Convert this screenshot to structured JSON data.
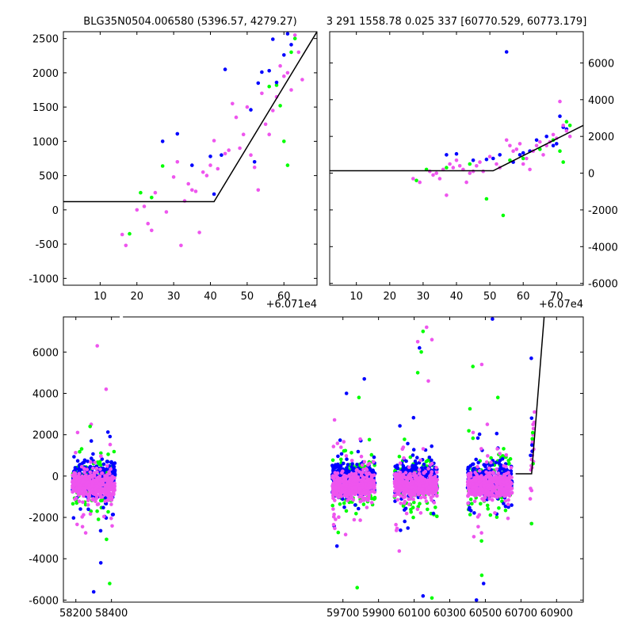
{
  "colors": {
    "blue": "#0000ff",
    "green": "#00ff00",
    "pink": "#ee55ee",
    "model": "#000000",
    "background": "#ffffff"
  },
  "chart_data": [
    {
      "type": "scatter",
      "title": "BLG35N0504.006580 (5396.57, 4279.27)",
      "x_offset_label": "+6.071e4",
      "xlim": [
        0,
        69
      ],
      "ylim": [
        -1100,
        2600
      ],
      "x_ticks": [
        10,
        20,
        30,
        40,
        50,
        60
      ],
      "y_ticks": [
        -1000,
        -500,
        0,
        500,
        1000,
        1500,
        2000,
        2500
      ],
      "y_axis_side": "left",
      "series": [
        {
          "color": "blue",
          "points": [
            [
              27,
              1000
            ],
            [
              31,
              1110
            ],
            [
              35,
              650
            ],
            [
              40,
              780
            ],
            [
              41,
              230
            ],
            [
              43,
              800
            ],
            [
              44,
              2050
            ],
            [
              51,
              1460
            ],
            [
              52,
              700
            ],
            [
              53,
              1850
            ],
            [
              54,
              2010
            ],
            [
              56,
              2030
            ],
            [
              57,
              2490
            ],
            [
              58,
              1860
            ],
            [
              60,
              2260
            ],
            [
              61,
              2570
            ],
            [
              62,
              2410
            ]
          ]
        },
        {
          "color": "green",
          "points": [
            [
              18,
              -350
            ],
            [
              21,
              250
            ],
            [
              24,
              180
            ],
            [
              27,
              640
            ],
            [
              56,
              1800
            ],
            [
              58,
              1820
            ],
            [
              59,
              1520
            ],
            [
              60,
              1000
            ],
            [
              61,
              650
            ],
            [
              62,
              2300
            ],
            [
              63,
              2500
            ]
          ]
        },
        {
          "color": "pink",
          "points": [
            [
              16,
              -360
            ],
            [
              17,
              -520
            ],
            [
              20,
              0
            ],
            [
              22,
              50
            ],
            [
              23,
              -200
            ],
            [
              24,
              -300
            ],
            [
              25,
              250
            ],
            [
              28,
              -30
            ],
            [
              30,
              480
            ],
            [
              31,
              700
            ],
            [
              32,
              -520
            ],
            [
              33,
              130
            ],
            [
              34,
              380
            ],
            [
              35,
              290
            ],
            [
              36,
              270
            ],
            [
              37,
              -330
            ],
            [
              38,
              550
            ],
            [
              39,
              500
            ],
            [
              40,
              650
            ],
            [
              41,
              1010
            ],
            [
              42,
              600
            ],
            [
              44,
              820
            ],
            [
              45,
              870
            ],
            [
              46,
              1550
            ],
            [
              47,
              1350
            ],
            [
              48,
              900
            ],
            [
              49,
              1100
            ],
            [
              50,
              1500
            ],
            [
              51,
              800
            ],
            [
              52,
              620
            ],
            [
              53,
              290
            ],
            [
              54,
              1700
            ],
            [
              55,
              1250
            ],
            [
              56,
              1100
            ],
            [
              57,
              1450
            ],
            [
              58,
              1650
            ],
            [
              59,
              2100
            ],
            [
              60,
              1950
            ],
            [
              61,
              2000
            ],
            [
              62,
              1750
            ],
            [
              63,
              2550
            ],
            [
              64,
              2300
            ],
            [
              65,
              1900
            ]
          ]
        }
      ],
      "model": [
        [
          0,
          120
        ],
        [
          41,
          120
        ],
        [
          69,
          2600
        ]
      ]
    },
    {
      "type": "scatter",
      "title": "3 291 1558.78 0.025 337 [60770.529, 60773.179]",
      "x_offset_label": "+6.07e4",
      "xlim": [
        2,
        78
      ],
      "ylim": [
        -6100,
        7700
      ],
      "x_ticks": [
        10,
        20,
        30,
        40,
        50,
        60,
        70
      ],
      "y_ticks": [
        -6000,
        -4000,
        -2000,
        0,
        2000,
        4000,
        6000
      ],
      "y_axis_side": "right",
      "series": [
        {
          "color": "blue",
          "points": [
            [
              37,
              1000
            ],
            [
              40,
              1050
            ],
            [
              45,
              700
            ],
            [
              49,
              750
            ],
            [
              51,
              800
            ],
            [
              53,
              1000
            ],
            [
              55,
              6600
            ],
            [
              57,
              600
            ],
            [
              59,
              1000
            ],
            [
              60,
              1100
            ],
            [
              62,
              1200
            ],
            [
              64,
              1800
            ],
            [
              67,
              2000
            ],
            [
              69,
              1500
            ],
            [
              70,
              1600
            ],
            [
              71,
              3100
            ],
            [
              72,
              2500
            ],
            [
              73,
              2400
            ]
          ]
        },
        {
          "color": "green",
          "points": [
            [
              28,
              -400
            ],
            [
              31,
              200
            ],
            [
              37,
              300
            ],
            [
              44,
              500
            ],
            [
              49,
              -1400
            ],
            [
              54,
              -2300
            ],
            [
              56,
              700
            ],
            [
              60,
              800
            ],
            [
              65,
              1300
            ],
            [
              69,
              1800
            ],
            [
              71,
              1200
            ],
            [
              72,
              600
            ],
            [
              73,
              2800
            ],
            [
              74,
              2600
            ]
          ]
        },
        {
          "color": "pink",
          "points": [
            [
              27,
              -300
            ],
            [
              29,
              -500
            ],
            [
              32,
              100
            ],
            [
              33,
              -100
            ],
            [
              34,
              0
            ],
            [
              35,
              -300
            ],
            [
              36,
              200
            ],
            [
              37,
              -1200
            ],
            [
              38,
              500
            ],
            [
              39,
              300
            ],
            [
              40,
              700
            ],
            [
              41,
              400
            ],
            [
              42,
              200
            ],
            [
              43,
              -500
            ],
            [
              44,
              0
            ],
            [
              45,
              100
            ],
            [
              46,
              400
            ],
            [
              47,
              600
            ],
            [
              48,
              100
            ],
            [
              50,
              900
            ],
            [
              52,
              500
            ],
            [
              53,
              300
            ],
            [
              55,
              1800
            ],
            [
              56,
              1500
            ],
            [
              57,
              1200
            ],
            [
              58,
              1300
            ],
            [
              59,
              1600
            ],
            [
              60,
              500
            ],
            [
              61,
              800
            ],
            [
              62,
              200
            ],
            [
              63,
              1200
            ],
            [
              64,
              1500
            ],
            [
              65,
              1700
            ],
            [
              66,
              1000
            ],
            [
              67,
              1500
            ],
            [
              68,
              1700
            ],
            [
              69,
              2100
            ],
            [
              70,
              1900
            ],
            [
              71,
              3900
            ],
            [
              72,
              2600
            ],
            [
              73,
              2300
            ],
            [
              74,
              2000
            ]
          ]
        }
      ],
      "model": [
        [
          2,
          130
        ],
        [
          51,
          130
        ],
        [
          78,
          2600
        ]
      ]
    },
    {
      "type": "scatter",
      "title": "",
      "xlim": [
        58130,
        61050
      ],
      "ylim": [
        -6100,
        7700
      ],
      "x_ticks": [
        58200,
        58400,
        59700,
        59900,
        60100,
        60300,
        60500,
        60700,
        60900
      ],
      "y_ticks": [
        -6000,
        -4000,
        -2000,
        0,
        2000,
        4000,
        6000
      ],
      "y_axis_side": "left",
      "seasons": [
        {
          "range": [
            58180,
            58420
          ],
          "color_order": [
            "green",
            "blue",
            "pink"
          ]
        },
        {
          "range": [
            59640,
            59880
          ],
          "color_order": [
            "green",
            "blue",
            "pink"
          ]
        },
        {
          "range": [
            59990,
            60230
          ],
          "color_order": [
            "green",
            "blue",
            "pink"
          ]
        },
        {
          "range": [
            60400,
            60650
          ],
          "color_order": [
            "green",
            "blue",
            "pink"
          ]
        }
      ],
      "outliers": [
        {
          "color": "pink",
          "points": [
            [
              58320,
              6300
            ],
            [
              58370,
              4200
            ],
            [
              60170,
              7200
            ],
            [
              60200,
              6600
            ],
            [
              60480,
              5400
            ],
            [
              60120,
              6500
            ],
            [
              60180,
              4600
            ]
          ]
        },
        {
          "color": "green",
          "points": [
            [
              60150,
              7000
            ],
            [
              60140,
              6000
            ],
            [
              60120,
              5000
            ],
            [
              60430,
              5300
            ],
            [
              59790,
              3800
            ],
            [
              60570,
              3800
            ],
            [
              58280,
              2400
            ],
            [
              58390,
              -5200
            ],
            [
              59780,
              -5400
            ],
            [
              60480,
              -4800
            ],
            [
              60200,
              -5900
            ]
          ]
        },
        {
          "color": "blue",
          "points": [
            [
              60130,
              6200
            ],
            [
              59820,
              4700
            ],
            [
              59720,
              4000
            ],
            [
              60450,
              -6000
            ],
            [
              60540,
              7600
            ],
            [
              58300,
              -5600
            ],
            [
              58340,
              -4200
            ],
            [
              60150,
              -5800
            ],
            [
              60490,
              -5200
            ]
          ]
        }
      ],
      "final": {
        "color": "pink",
        "points": [
          [
            60756,
            300
          ],
          [
            60758,
            500
          ],
          [
            60760,
            800
          ],
          [
            60762,
            1200
          ],
          [
            60764,
            1600
          ],
          [
            60766,
            1800
          ],
          [
            60768,
            2000
          ],
          [
            60770,
            700
          ],
          [
            60772,
            1300
          ],
          [
            60774,
            2600
          ],
          [
            60776,
            3100
          ],
          [
            60752,
            -1100
          ],
          [
            60754,
            -600
          ],
          [
            60758,
            -2300
          ],
          [
            60760,
            -700
          ],
          [
            60762,
            400
          ],
          [
            60764,
            1000
          ],
          [
            60766,
            1700
          ],
          [
            60768,
            2500
          ],
          [
            60770,
            2300
          ]
        ]
      },
      "final_blue": [
        [
          60758,
          5700
        ],
        [
          60760,
          2800
        ],
        [
          60762,
          1500
        ],
        [
          60764,
          1200
        ],
        [
          60754,
          1000
        ]
      ],
      "final_green": [
        [
          60760,
          -2300
        ],
        [
          60764,
          1800
        ],
        [
          60766,
          2100
        ],
        [
          60768,
          600
        ]
      ],
      "model": [
        [
          60670,
          110
        ],
        [
          60760,
          110
        ],
        [
          60830,
          7700
        ]
      ]
    }
  ]
}
